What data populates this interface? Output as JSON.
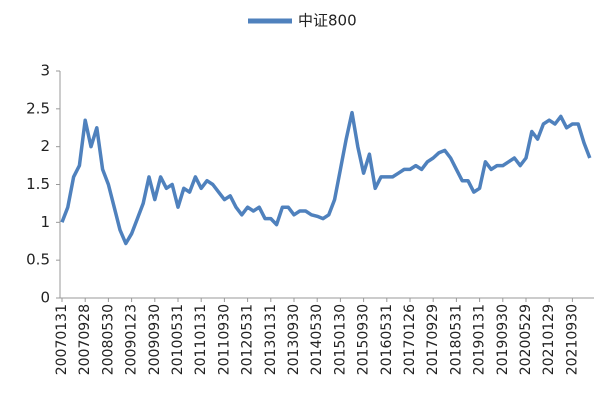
{
  "chart_data": {
    "type": "line",
    "categories": [
      "20070131",
      null,
      null,
      null,
      "20070928",
      null,
      null,
      null,
      "20080530",
      null,
      null,
      null,
      "20090123",
      null,
      null,
      null,
      "20090930",
      null,
      null,
      null,
      "20100531",
      null,
      null,
      null,
      "20110131",
      null,
      null,
      null,
      "20110930",
      null,
      null,
      null,
      "20120531",
      null,
      null,
      null,
      "20130131",
      null,
      null,
      null,
      "20130930",
      null,
      null,
      null,
      "20140530",
      null,
      null,
      null,
      "20150130",
      null,
      null,
      null,
      "20150930",
      null,
      null,
      null,
      "20160531",
      null,
      null,
      null,
      "20170126",
      null,
      null,
      null,
      "20170929",
      null,
      null,
      null,
      "20180531",
      null,
      null,
      null,
      "20190131",
      null,
      null,
      null,
      "20190930",
      null,
      null,
      null,
      "20200529",
      null,
      null,
      null,
      "20210129",
      null,
      null,
      null,
      "20210930",
      null,
      null,
      null
    ],
    "series": [
      {
        "name": "中证800",
        "color": "#4f81bd",
        "values": [
          1.0,
          1.2,
          1.6,
          1.75,
          2.35,
          2.0,
          2.25,
          1.7,
          1.5,
          1.2,
          0.9,
          0.72,
          0.85,
          1.05,
          1.25,
          1.6,
          1.3,
          1.6,
          1.45,
          1.5,
          1.2,
          1.45,
          1.4,
          1.6,
          1.45,
          1.55,
          1.5,
          1.4,
          1.3,
          1.35,
          1.2,
          1.1,
          1.2,
          1.15,
          1.2,
          1.05,
          1.05,
          0.97,
          1.2,
          1.2,
          1.1,
          1.15,
          1.15,
          1.1,
          1.08,
          1.05,
          1.1,
          1.3,
          1.7,
          2.1,
          2.45,
          2.0,
          1.65,
          1.9,
          1.45,
          1.6,
          1.6,
          1.6,
          1.65,
          1.7,
          1.7,
          1.75,
          1.7,
          1.8,
          1.85,
          1.92,
          1.95,
          1.85,
          1.7,
          1.55,
          1.55,
          1.4,
          1.45,
          1.8,
          1.7,
          1.75,
          1.75,
          1.8,
          1.85,
          1.75,
          1.85,
          2.2,
          2.1,
          2.3,
          2.35,
          2.3,
          2.4,
          2.25,
          2.3,
          2.3,
          2.05,
          1.85
        ]
      }
    ],
    "ylim": [
      0,
      3
    ],
    "yticks": [
      0,
      0.5,
      1,
      1.5,
      2,
      2.5,
      3
    ],
    "legend": "top"
  }
}
